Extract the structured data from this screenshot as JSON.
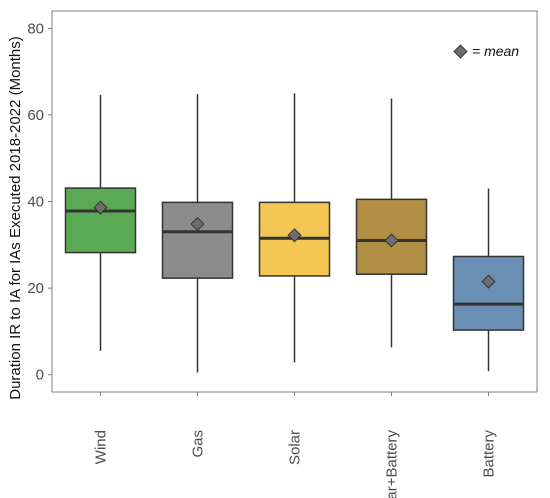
{
  "chart_data": {
    "type": "boxplot",
    "title": "",
    "xlabel": "",
    "ylabel": "Duration IR to IA for IAs Executed 2018-2022 (Months)",
    "ylim": [
      -4,
      84
    ],
    "yticks": [
      0,
      20,
      40,
      60,
      80
    ],
    "grid": false,
    "legend": {
      "placement": "top-right",
      "marker": "diamond",
      "text": "= mean"
    },
    "categories": [
      "Wind",
      "Gas",
      "Solar",
      "Solar+Battery",
      "Battery"
    ],
    "series": [
      {
        "category": "Wind",
        "whisker_low": 5.5,
        "q1": 28.2,
        "median": 37.8,
        "q3": 43.1,
        "whisker_high": 64.6,
        "mean": 38.6,
        "color": "#5aaa55"
      },
      {
        "category": "Gas",
        "whisker_low": 0.5,
        "q1": 22.3,
        "median": 33.0,
        "q3": 39.8,
        "whisker_high": 64.8,
        "mean": 34.8,
        "color": "#8c8c8c"
      },
      {
        "category": "Solar",
        "whisker_low": 2.8,
        "q1": 22.8,
        "median": 31.5,
        "q3": 39.8,
        "whisker_high": 65.0,
        "mean": 32.2,
        "color": "#f3c553"
      },
      {
        "category": "Solar+Battery",
        "whisker_low": 6.3,
        "q1": 23.2,
        "median": 31.0,
        "q3": 40.5,
        "whisker_high": 63.8,
        "mean": 31.0,
        "color": "#b08f45"
      },
      {
        "category": "Battery",
        "whisker_low": 0.8,
        "q1": 10.3,
        "median": 16.3,
        "q3": 27.3,
        "whisker_high": 43.0,
        "mean": 21.5,
        "color": "#6a8fb5"
      }
    ],
    "colors": {
      "line": "#333333",
      "mean_marker": "#6e6e6e",
      "panel_border": "#7f7f7f"
    }
  }
}
